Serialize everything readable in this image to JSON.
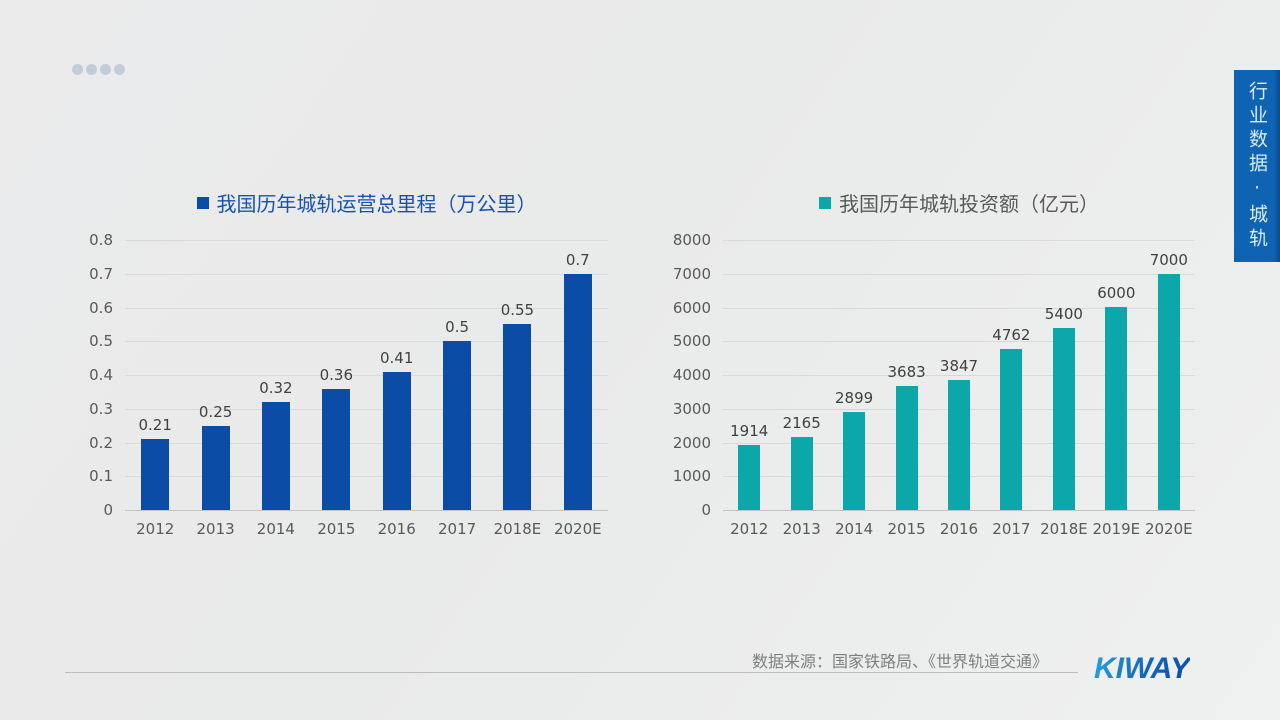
{
  "banner": {
    "title": "行业数据·城轨",
    "color": "#0e63b2"
  },
  "pagination": {
    "count": 4
  },
  "source_note": "数据来源：国家铁路局、《世界轨道交通》",
  "logo_text": "KIWAY",
  "logo_colors": [
    "#2ba0dc",
    "#0b4da6"
  ],
  "chart_data": [
    {
      "type": "bar",
      "title": "我国历年城轨运营总里程（万公里）",
      "categories": [
        "2012",
        "2013",
        "2014",
        "2015",
        "2016",
        "2017",
        "2018E",
        "2020E"
      ],
      "values": [
        0.21,
        0.25,
        0.32,
        0.36,
        0.41,
        0.5,
        0.55,
        0.7
      ],
      "labels": [
        "0.21",
        "0.25",
        "0.32",
        "0.36",
        "0.41",
        "0.5",
        "0.55",
        "0.7"
      ],
      "ylim": [
        0,
        0.8
      ],
      "yticks": [
        "0",
        "0.1",
        "0.2",
        "0.3",
        "0.4",
        "0.5",
        "0.6",
        "0.7",
        "0.8"
      ],
      "bar_color": "#0b4da6",
      "title_color": "#1553ad",
      "grid": true,
      "legend_position": "top"
    },
    {
      "type": "bar",
      "title": "我国历年城轨投资额（亿元）",
      "categories": [
        "2012",
        "2013",
        "2014",
        "2015",
        "2016",
        "2017",
        "2018E",
        "2019E",
        "2020E"
      ],
      "values": [
        1914,
        2165,
        2899,
        3683,
        3847,
        4762,
        5400,
        6000,
        7000
      ],
      "labels": [
        "1914",
        "2165",
        "2899",
        "3683",
        "3847",
        "4762",
        "5400",
        "6000",
        "7000"
      ],
      "ylim": [
        0,
        8000
      ],
      "yticks": [
        "0",
        "1000",
        "2000",
        "3000",
        "4000",
        "5000",
        "6000",
        "7000",
        "8000"
      ],
      "bar_color": "#0ba7a9",
      "title_color": "#595959",
      "grid": true,
      "legend_position": "top"
    }
  ]
}
